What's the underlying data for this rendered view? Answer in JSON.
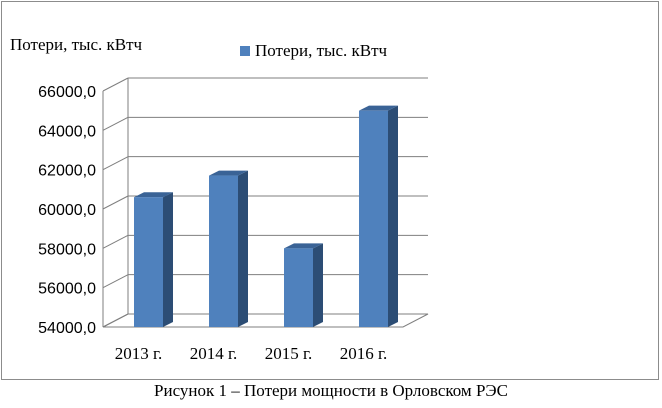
{
  "chart_data": {
    "type": "bar",
    "view": "3d",
    "ylabel": "Потери, тыс. кВтч",
    "categories": [
      "2013 г.",
      "2014 г.",
      "2015 г.",
      "2016 г."
    ],
    "series": [
      {
        "name": "Потери, тыс. кВтч",
        "values": [
          60600,
          61700,
          58000,
          65000
        ]
      }
    ],
    "ylim": [
      54000,
      66000
    ],
    "yticks": [
      54000,
      56000,
      58000,
      60000,
      62000,
      64000,
      66000
    ],
    "ytick_labels": [
      "54000,0",
      "56000,0",
      "58000,0",
      "60000,0",
      "62000,0",
      "64000,0",
      "66000,0"
    ],
    "grid": true,
    "legend_position": "top-right"
  },
  "caption": "Рисунок 1 – Потери мощности в Орловском РЭС",
  "colors": {
    "bar_front": "#4f81bd",
    "bar_side": "#2c4d75",
    "bar_top": "#3a6396",
    "grid": "#7f7f7f"
  }
}
